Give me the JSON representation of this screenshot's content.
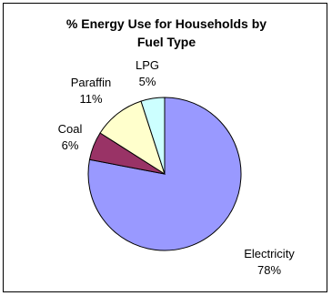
{
  "chart_data": {
    "type": "pie",
    "title": "% Energy Use for Households by Fuel Type",
    "title_lines": [
      "% Energy Use for Households by",
      "Fuel Type"
    ],
    "slices": [
      {
        "label": "Electricity",
        "value": 78,
        "value_text": "78%",
        "color": "#9999ff"
      },
      {
        "label": "Coal",
        "value": 6,
        "value_text": "6%",
        "color": "#993366"
      },
      {
        "label": "Paraffin",
        "value": 11,
        "value_text": "11%",
        "color": "#ffffcc"
      },
      {
        "label": "LPG",
        "value": 5,
        "value_text": "5%",
        "color": "#ccffff"
      }
    ],
    "start_angle_deg": 0,
    "direction": "clockwise",
    "slice_outline_color": "#000000",
    "legend": "none"
  }
}
